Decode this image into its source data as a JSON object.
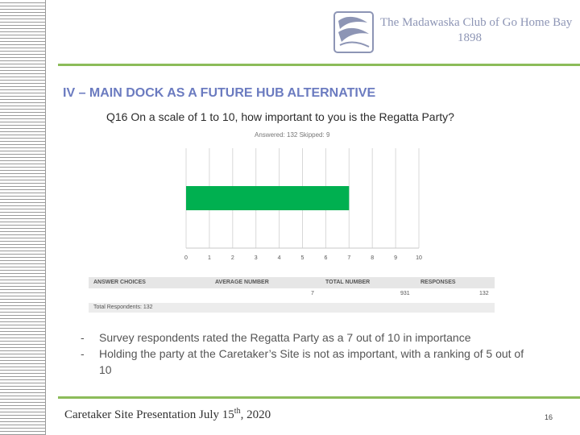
{
  "header": {
    "club_name": "The Madawaska Club of Go Home Bay",
    "club_year": "1898"
  },
  "slide": {
    "title": "IV – MAIN DOCK AS A FUTURE HUB ALTERNATIVE",
    "question": "Q16 On a scale of 1 to 10, how important to you is the Regatta Party?",
    "answered_skipped": "Answered: 132    Skipped: 9"
  },
  "chart_data": {
    "type": "bar",
    "orientation": "horizontal",
    "categories": [
      ""
    ],
    "values": [
      7
    ],
    "xlim": [
      0,
      10
    ],
    "xticks": [
      "0",
      "1",
      "2",
      "3",
      "4",
      "5",
      "6",
      "7",
      "8",
      "9",
      "10"
    ],
    "grid": true,
    "color": "#00b050"
  },
  "table": {
    "headers": [
      "ANSWER CHOICES",
      "AVERAGE NUMBER",
      "TOTAL NUMBER",
      "RESPONSES"
    ],
    "row": [
      "",
      "7",
      "931",
      "132"
    ],
    "total_label": "Total Respondents: 132"
  },
  "bullets": [
    {
      "dash": "-",
      "text": "Survey respondents rated the Regatta Party as a 7 out of 10 in importance"
    },
    {
      "dash": "-",
      "text": "Holding the party at the Caretaker’s Site is not as important, with a ranking of 5 out of 10"
    }
  ],
  "footer": {
    "text": "Caretaker Site Presentation July 15",
    "superscript": "th",
    "suffix": ", 2020",
    "page_number": "16"
  },
  "colors": {
    "rule_green": "#8cbc5a",
    "title_blue": "#6b7bc0",
    "logo_blue": "#8d95b5"
  }
}
